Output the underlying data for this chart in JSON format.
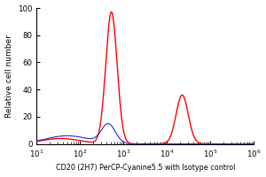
{
  "title": "",
  "xlabel": "CD20 (2H7) PerCP-Cyanine5.5 with Isotype control",
  "ylabel": "Relative cell number",
  "ylim": [
    0,
    100
  ],
  "yticks": [
    0,
    20,
    40,
    60,
    80,
    100
  ],
  "bg_color": "#ffffff",
  "plot_bg_color": "#ffffff",
  "red_color": "#ff0000",
  "blue_color": "#3333cc",
  "xlabel_fontsize": 5.8,
  "ylabel_fontsize": 6.5,
  "tick_fontsize": 6.2,
  "red_peak1_mu": 2.72,
  "red_peak1_sigma": 0.13,
  "red_peak1_amp": 97,
  "red_peak2_mu": 4.35,
  "red_peak2_sigma": 0.14,
  "red_peak2_amp": 36,
  "red_base_mu": 1.55,
  "red_base_sigma": 0.45,
  "red_base_amp": 4,
  "blue_peak1_mu": 2.65,
  "blue_peak1_sigma": 0.16,
  "blue_peak1_amp": 14,
  "blue_rise_mu": 1.7,
  "blue_rise_sigma": 0.5,
  "blue_rise_amp": 6
}
